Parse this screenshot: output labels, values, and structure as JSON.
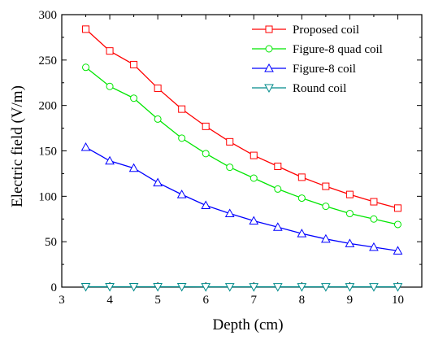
{
  "chart_data": {
    "type": "line",
    "xlabel": "Depth (cm)",
    "ylabel": "Electric field (V/m)",
    "xlim": [
      3,
      10.5
    ],
    "ylim": [
      0,
      300
    ],
    "xticks": [
      3,
      4,
      5,
      6,
      7,
      8,
      9,
      10
    ],
    "yticks": [
      0,
      50,
      100,
      150,
      200,
      250,
      300
    ],
    "legend_position": "top-right",
    "grid": false,
    "x": [
      3.5,
      4,
      4.5,
      5,
      5.5,
      6,
      6.5,
      7,
      7.5,
      8,
      8.5,
      9,
      9.5,
      10
    ],
    "series": [
      {
        "name": "Proposed coil",
        "color": "#ff0000",
        "marker": "square",
        "values": [
          284,
          260,
          245,
          219,
          196,
          177,
          160,
          145,
          133,
          121,
          111,
          102,
          94,
          87
        ]
      },
      {
        "name": "Figure-8 quad coil",
        "color": "#00e600",
        "marker": "circle",
        "values": [
          242,
          221,
          208,
          185,
          164,
          147,
          132,
          120,
          108,
          98,
          89,
          81,
          75,
          69
        ]
      },
      {
        "name": "Figure-8 coil",
        "color": "#0000ff",
        "marker": "triangle-up",
        "values": [
          154,
          139,
          131,
          115,
          102,
          90,
          81,
          73,
          66,
          59,
          53,
          48,
          44,
          40
        ]
      },
      {
        "name": "Round coil",
        "color": "#008b8b",
        "marker": "triangle-down",
        "values": [
          0.4,
          0.4,
          0.4,
          0.4,
          0.4,
          0.3,
          0.3,
          0.3,
          0.3,
          0.3,
          0.3,
          0.3,
          0.3,
          0.3
        ]
      }
    ]
  }
}
